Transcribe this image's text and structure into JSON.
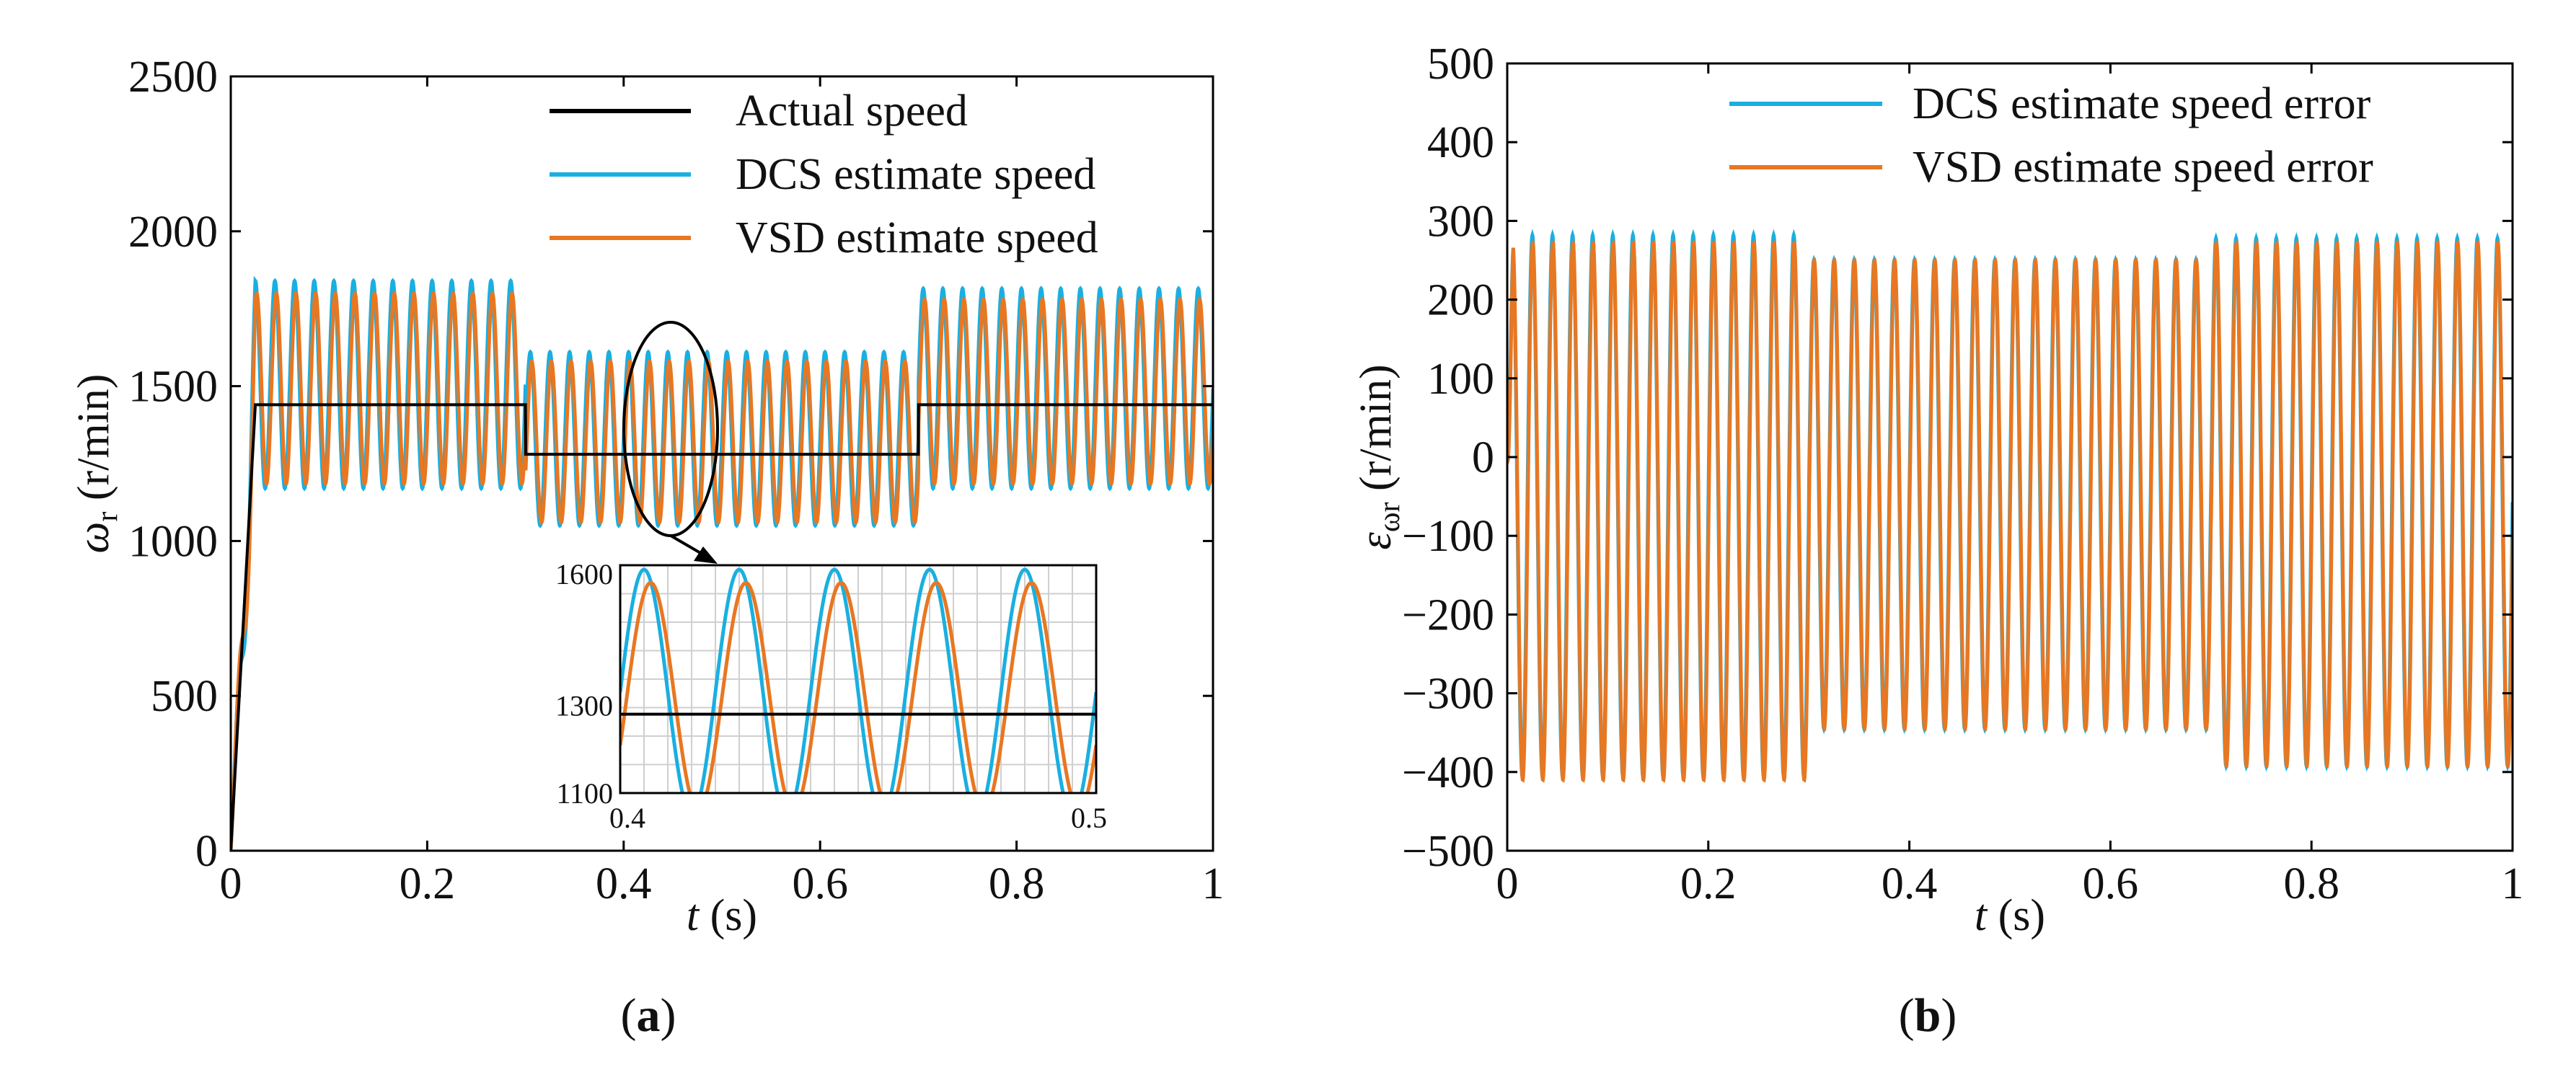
{
  "chart_data": [
    {
      "type": "line",
      "panel": "a",
      "caption_open": "(",
      "caption_letter": "a",
      "caption_close": ")",
      "title": "",
      "xlabel_var": "t",
      "xlabel_unit": " (s)",
      "ylabel_var": "ω",
      "ylabel_sub": "r",
      "ylabel_unit": " (r/min)",
      "xlim": [
        0,
        1
      ],
      "ylim": [
        0,
        2500
      ],
      "xticks": [
        0,
        0.2,
        0.4,
        0.6,
        0.8,
        1
      ],
      "xtick_labels": [
        "0",
        "0.2",
        "0.4",
        "0.6",
        "0.8",
        "1"
      ],
      "yticks": [
        0,
        500,
        1000,
        1500,
        2000,
        2500
      ],
      "ytick_labels": [
        "0",
        "500",
        "1000",
        "1500",
        "2000",
        "2500"
      ],
      "grid": false,
      "legend_position": "top-right",
      "series": [
        {
          "name": "Actual speed",
          "color": "#000000",
          "kind": "actual",
          "ramp_end_t": 0.025,
          "segments": [
            {
              "t_start": 0.0,
              "t_end": 0.3,
              "level": 1440
            },
            {
              "t_start": 0.3,
              "t_end": 0.7,
              "level": 1280
            },
            {
              "t_start": 0.7,
              "t_end": 1.0,
              "level": 1440
            }
          ]
        },
        {
          "name": "DCS estimate speed",
          "color": "#1AAFE0",
          "kind": "estimate",
          "frequency_hz": 50,
          "phase_cycles": 0.0,
          "segments": [
            {
              "t_start": 0.0,
              "t_end": 0.3,
              "max": 1840,
              "min": 1170
            },
            {
              "t_start": 0.3,
              "t_end": 0.7,
              "max": 1610,
              "min": 1050
            },
            {
              "t_start": 0.7,
              "t_end": 1.0,
              "max": 1815,
              "min": 1170
            }
          ]
        },
        {
          "name": "VSD estimate speed",
          "color": "#E87722",
          "kind": "estimate",
          "frequency_hz": 50,
          "phase_cycles": 0.07,
          "segments": [
            {
              "t_start": 0.0,
              "t_end": 0.3,
              "max": 1800,
              "min": 1185
            },
            {
              "t_start": 0.3,
              "t_end": 0.7,
              "max": 1580,
              "min": 1060
            },
            {
              "t_start": 0.7,
              "t_end": 1.0,
              "max": 1780,
              "min": 1185
            }
          ]
        }
      ],
      "inset": {
        "xlim": [
          0.4,
          0.5
        ],
        "ylim": [
          1100,
          1620
        ],
        "xtick_labels": [
          "0.4",
          "0.5"
        ],
        "ytick_values": [
          1100,
          1300,
          1600
        ],
        "ytick_labels": [
          "1100",
          "1300",
          "1600"
        ],
        "grid": true
      }
    },
    {
      "type": "line",
      "panel": "b",
      "caption_open": "(",
      "caption_letter": "b",
      "caption_close": ")",
      "title": "",
      "xlabel_var": "t",
      "xlabel_unit": " (s)",
      "ylabel_var": "ε",
      "ylabel_sub": "ωr",
      "ylabel_unit": " (r/min)",
      "xlim": [
        0,
        1
      ],
      "ylim": [
        -500,
        500
      ],
      "xticks": [
        0,
        0.2,
        0.4,
        0.6,
        0.8,
        1
      ],
      "xtick_labels": [
        "0",
        "0.2",
        "0.4",
        "0.6",
        "0.8",
        "1"
      ],
      "yticks": [
        -500,
        -400,
        -300,
        -200,
        -100,
        0,
        100,
        200,
        300,
        400,
        500
      ],
      "ytick_labels": [
        "−500",
        "−400",
        "−300",
        "−200",
        "−100",
        "0",
        "100",
        "200",
        "300",
        "400",
        "500"
      ],
      "grid": false,
      "legend_position": "top-right",
      "series": [
        {
          "name": "DCS estimate speed error",
          "color": "#1AAFE0",
          "frequency_hz": 50,
          "phase_cycles": 0.0,
          "segments": [
            {
              "t_start": 0.0,
              "t_end": 0.3,
              "max": 282,
              "min": -405
            },
            {
              "t_start": 0.3,
              "t_end": 0.7,
              "max": 250,
              "min": -345
            },
            {
              "t_start": 0.7,
              "t_end": 1.0,
              "max": 278,
              "min": -392
            }
          ]
        },
        {
          "name": "VSD estimate speed error",
          "color": "#E87722",
          "frequency_hz": 50,
          "phase_cycles": 0.02,
          "segments": [
            {
              "t_start": 0.0,
              "t_end": 0.3,
              "max": 272,
              "min": -410
            },
            {
              "t_start": 0.3,
              "t_end": 0.7,
              "max": 250,
              "min": -345
            },
            {
              "t_start": 0.7,
              "t_end": 1.0,
              "max": 272,
              "min": -392
            }
          ]
        }
      ]
    }
  ]
}
